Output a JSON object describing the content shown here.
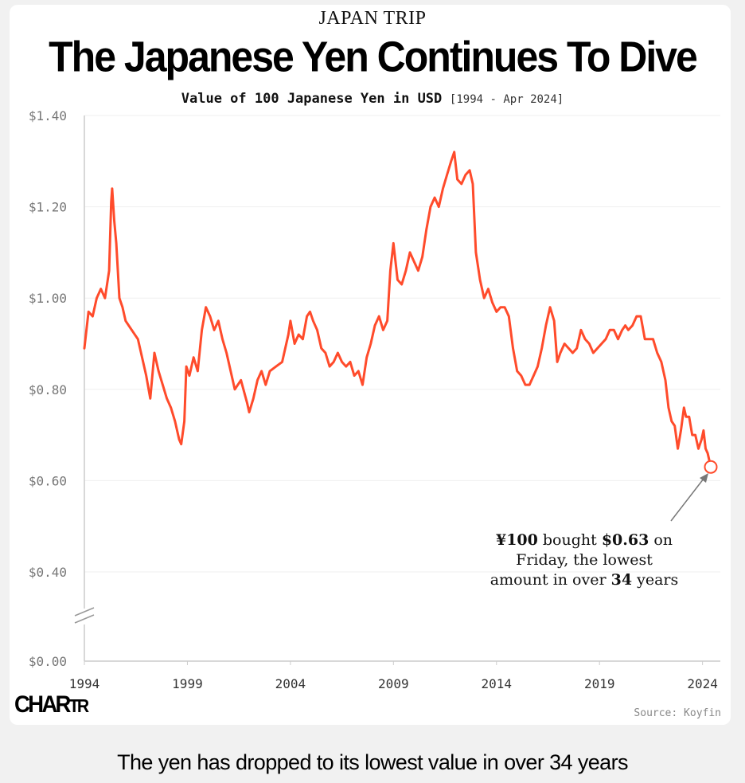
{
  "header": {
    "kicker": "JAPAN TRIP",
    "headline": "The Japanese Yen Continues To Dive",
    "subtitle": "Value of 100 Japanese Yen in USD",
    "subtitle_range": "[1994 - Apr 2024]"
  },
  "footer": {
    "logo_main": "CHAR",
    "logo_tr": "TR",
    "source": "Source: Koyfin",
    "caption": "The yen has dropped to its lowest value in over 34 years"
  },
  "colors": {
    "line": "#ff4b2b",
    "axis": "#cccccc",
    "grid": "#efefef",
    "arrow": "#777777"
  },
  "chart_data": {
    "type": "line",
    "title": "Value of 100 Japanese Yen in USD",
    "xlabel": "",
    "ylabel": "",
    "xlim": [
      1994,
      2024.4
    ],
    "ylim": [
      0,
      1.4
    ],
    "axis_break": [
      0.05,
      0.35
    ],
    "y_ticks": [
      {
        "value": 0.0,
        "label": "$0.00"
      },
      {
        "value": 0.4,
        "label": "$0.40"
      },
      {
        "value": 0.6,
        "label": "$0.60"
      },
      {
        "value": 0.8,
        "label": "$0.80"
      },
      {
        "value": 1.0,
        "label": "$1.00"
      },
      {
        "value": 1.2,
        "label": "$1.20"
      },
      {
        "value": 1.4,
        "label": "$1.40"
      }
    ],
    "x_ticks": [
      {
        "value": 1994,
        "label": "1994"
      },
      {
        "value": 1999,
        "label": "1999"
      },
      {
        "value": 2004,
        "label": "2004"
      },
      {
        "value": 2009,
        "label": "2009"
      },
      {
        "value": 2014,
        "label": "2014"
      },
      {
        "value": 2019,
        "label": "2019"
      },
      {
        "value": 2024,
        "label": "2024"
      }
    ],
    "series": [
      {
        "name": "USD value of 100 JPY",
        "points": [
          [
            1994.0,
            0.89
          ],
          [
            1994.2,
            0.97
          ],
          [
            1994.4,
            0.96
          ],
          [
            1994.6,
            1.0
          ],
          [
            1994.8,
            1.02
          ],
          [
            1995.0,
            1.0
          ],
          [
            1995.2,
            1.06
          ],
          [
            1995.3,
            1.21
          ],
          [
            1995.35,
            1.24
          ],
          [
            1995.45,
            1.17
          ],
          [
            1995.55,
            1.12
          ],
          [
            1995.7,
            1.0
          ],
          [
            1995.85,
            0.98
          ],
          [
            1996.0,
            0.95
          ],
          [
            1996.3,
            0.93
          ],
          [
            1996.6,
            0.91
          ],
          [
            1997.0,
            0.83
          ],
          [
            1997.2,
            0.78
          ],
          [
            1997.4,
            0.88
          ],
          [
            1997.6,
            0.84
          ],
          [
            1997.8,
            0.81
          ],
          [
            1998.0,
            0.78
          ],
          [
            1998.2,
            0.76
          ],
          [
            1998.4,
            0.73
          ],
          [
            1998.6,
            0.69
          ],
          [
            1998.7,
            0.68
          ],
          [
            1998.85,
            0.73
          ],
          [
            1998.95,
            0.85
          ],
          [
            1999.1,
            0.83
          ],
          [
            1999.3,
            0.87
          ],
          [
            1999.5,
            0.84
          ],
          [
            1999.7,
            0.93
          ],
          [
            1999.9,
            0.98
          ],
          [
            2000.1,
            0.96
          ],
          [
            2000.3,
            0.93
          ],
          [
            2000.5,
            0.95
          ],
          [
            2000.7,
            0.91
          ],
          [
            2000.9,
            0.88
          ],
          [
            2001.1,
            0.84
          ],
          [
            2001.3,
            0.8
          ],
          [
            2001.6,
            0.82
          ],
          [
            2001.9,
            0.77
          ],
          [
            2002.0,
            0.75
          ],
          [
            2002.2,
            0.78
          ],
          [
            2002.4,
            0.82
          ],
          [
            2002.6,
            0.84
          ],
          [
            2002.8,
            0.81
          ],
          [
            2003.0,
            0.84
          ],
          [
            2003.3,
            0.85
          ],
          [
            2003.6,
            0.86
          ],
          [
            2003.9,
            0.92
          ],
          [
            2004.0,
            0.95
          ],
          [
            2004.2,
            0.9
          ],
          [
            2004.4,
            0.92
          ],
          [
            2004.6,
            0.91
          ],
          [
            2004.8,
            0.96
          ],
          [
            2004.95,
            0.97
          ],
          [
            2005.1,
            0.95
          ],
          [
            2005.3,
            0.93
          ],
          [
            2005.5,
            0.89
          ],
          [
            2005.7,
            0.88
          ],
          [
            2005.9,
            0.85
          ],
          [
            2006.1,
            0.86
          ],
          [
            2006.3,
            0.88
          ],
          [
            2006.5,
            0.86
          ],
          [
            2006.7,
            0.85
          ],
          [
            2006.9,
            0.86
          ],
          [
            2007.1,
            0.83
          ],
          [
            2007.3,
            0.84
          ],
          [
            2007.5,
            0.81
          ],
          [
            2007.7,
            0.87
          ],
          [
            2007.9,
            0.9
          ],
          [
            2008.1,
            0.94
          ],
          [
            2008.3,
            0.96
          ],
          [
            2008.5,
            0.93
          ],
          [
            2008.7,
            0.95
          ],
          [
            2008.85,
            1.06
          ],
          [
            2009.0,
            1.12
          ],
          [
            2009.2,
            1.04
          ],
          [
            2009.4,
            1.03
          ],
          [
            2009.6,
            1.06
          ],
          [
            2009.8,
            1.1
          ],
          [
            2010.0,
            1.08
          ],
          [
            2010.2,
            1.06
          ],
          [
            2010.4,
            1.09
          ],
          [
            2010.6,
            1.15
          ],
          [
            2010.8,
            1.2
          ],
          [
            2011.0,
            1.22
          ],
          [
            2011.2,
            1.2
          ],
          [
            2011.4,
            1.24
          ],
          [
            2011.6,
            1.27
          ],
          [
            2011.8,
            1.3
          ],
          [
            2011.95,
            1.32
          ],
          [
            2012.1,
            1.26
          ],
          [
            2012.3,
            1.25
          ],
          [
            2012.5,
            1.27
          ],
          [
            2012.7,
            1.28
          ],
          [
            2012.85,
            1.25
          ],
          [
            2013.0,
            1.1
          ],
          [
            2013.2,
            1.04
          ],
          [
            2013.4,
            1.0
          ],
          [
            2013.6,
            1.02
          ],
          [
            2013.8,
            0.99
          ],
          [
            2014.0,
            0.97
          ],
          [
            2014.2,
            0.98
          ],
          [
            2014.4,
            0.98
          ],
          [
            2014.6,
            0.96
          ],
          [
            2014.8,
            0.89
          ],
          [
            2015.0,
            0.84
          ],
          [
            2015.2,
            0.83
          ],
          [
            2015.4,
            0.81
          ],
          [
            2015.6,
            0.81
          ],
          [
            2015.8,
            0.83
          ],
          [
            2016.0,
            0.85
          ],
          [
            2016.2,
            0.89
          ],
          [
            2016.4,
            0.94
          ],
          [
            2016.6,
            0.98
          ],
          [
            2016.8,
            0.95
          ],
          [
            2016.95,
            0.86
          ],
          [
            2017.1,
            0.88
          ],
          [
            2017.3,
            0.9
          ],
          [
            2017.5,
            0.89
          ],
          [
            2017.7,
            0.88
          ],
          [
            2017.9,
            0.89
          ],
          [
            2018.1,
            0.93
          ],
          [
            2018.3,
            0.91
          ],
          [
            2018.5,
            0.9
          ],
          [
            2018.7,
            0.88
          ],
          [
            2018.9,
            0.89
          ],
          [
            2019.1,
            0.9
          ],
          [
            2019.3,
            0.91
          ],
          [
            2019.5,
            0.93
          ],
          [
            2019.7,
            0.93
          ],
          [
            2019.9,
            0.91
          ],
          [
            2020.1,
            0.93
          ],
          [
            2020.25,
            0.94
          ],
          [
            2020.4,
            0.93
          ],
          [
            2020.6,
            0.94
          ],
          [
            2020.8,
            0.96
          ],
          [
            2021.0,
            0.96
          ],
          [
            2021.2,
            0.91
          ],
          [
            2021.4,
            0.91
          ],
          [
            2021.6,
            0.91
          ],
          [
            2021.8,
            0.88
          ],
          [
            2022.0,
            0.86
          ],
          [
            2022.2,
            0.82
          ],
          [
            2022.35,
            0.76
          ],
          [
            2022.5,
            0.73
          ],
          [
            2022.65,
            0.72
          ],
          [
            2022.8,
            0.67
          ],
          [
            2022.95,
            0.71
          ],
          [
            2023.1,
            0.76
          ],
          [
            2023.2,
            0.74
          ],
          [
            2023.35,
            0.74
          ],
          [
            2023.5,
            0.7
          ],
          [
            2023.65,
            0.7
          ],
          [
            2023.8,
            0.67
          ],
          [
            2023.95,
            0.69
          ],
          [
            2024.05,
            0.71
          ],
          [
            2024.15,
            0.67
          ],
          [
            2024.25,
            0.66
          ],
          [
            2024.35,
            0.64
          ],
          [
            2024.4,
            0.63
          ]
        ]
      }
    ],
    "annotation": {
      "x": 2024.4,
      "y": 0.63,
      "lines": [
        [
          {
            "text": "¥100",
            "bold": true
          },
          {
            "text": " bought ",
            "bold": false
          },
          {
            "text": "$0.63",
            "bold": true
          },
          {
            "text": " on",
            "bold": false
          }
        ],
        [
          {
            "text": "Friday, the lowest",
            "bold": false
          }
        ],
        [
          {
            "text": "amount in over ",
            "bold": false
          },
          {
            "text": "34",
            "bold": true
          },
          {
            "text": " years",
            "bold": false
          }
        ]
      ]
    }
  }
}
